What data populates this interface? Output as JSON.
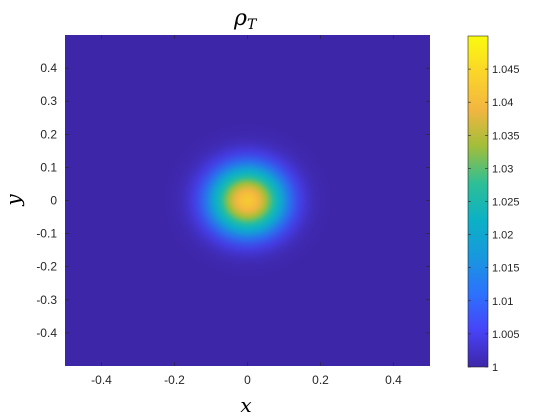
{
  "chart_data": {
    "type": "heatmap",
    "title": "ρ_T",
    "title_main": "ρ",
    "title_sub": "T",
    "xlabel": "x",
    "ylabel": "y",
    "xlim": [
      -0.5,
      0.5
    ],
    "ylim": [
      -0.5,
      0.5
    ],
    "x_ticks": [
      -0.4,
      -0.2,
      0,
      0.2,
      0.4
    ],
    "x_tick_labels": [
      "-0.4",
      "-0.2",
      "0",
      "0.2",
      "0.4"
    ],
    "y_ticks": [
      0.4,
      0.3,
      0.2,
      0.1,
      0,
      -0.1,
      -0.2,
      -0.3,
      -0.4
    ],
    "y_tick_labels": [
      "0.4",
      "0.3",
      "0.2",
      "0.1",
      "0",
      "-0.1",
      "-0.2",
      "-0.3",
      "-0.4"
    ],
    "colorbar": {
      "min": 1,
      "max": 1.05,
      "ticks": [
        1,
        1.005,
        1.01,
        1.015,
        1.02,
        1.025,
        1.03,
        1.035,
        1.04,
        1.045
      ],
      "tick_labels": [
        "1",
        "1.005",
        "1.01",
        "1.015",
        "1.02",
        "1.025",
        "1.03",
        "1.035",
        "1.04",
        "1.045"
      ],
      "colormap": "parula",
      "stops": [
        "#3e26a8",
        "#4743f8",
        "#2c72fd",
        "#1898de",
        "#0bb1c5",
        "#2ebf96",
        "#a1be3a",
        "#f2b640",
        "#fbd529",
        "#f9fb0e"
      ]
    },
    "field": {
      "description_of_peak": "gaussian bump centred at origin",
      "center": [
        0,
        0
      ],
      "base": 1,
      "peak": 1.042,
      "sigma": 0.075
    },
    "grid": false,
    "legend": "none"
  }
}
